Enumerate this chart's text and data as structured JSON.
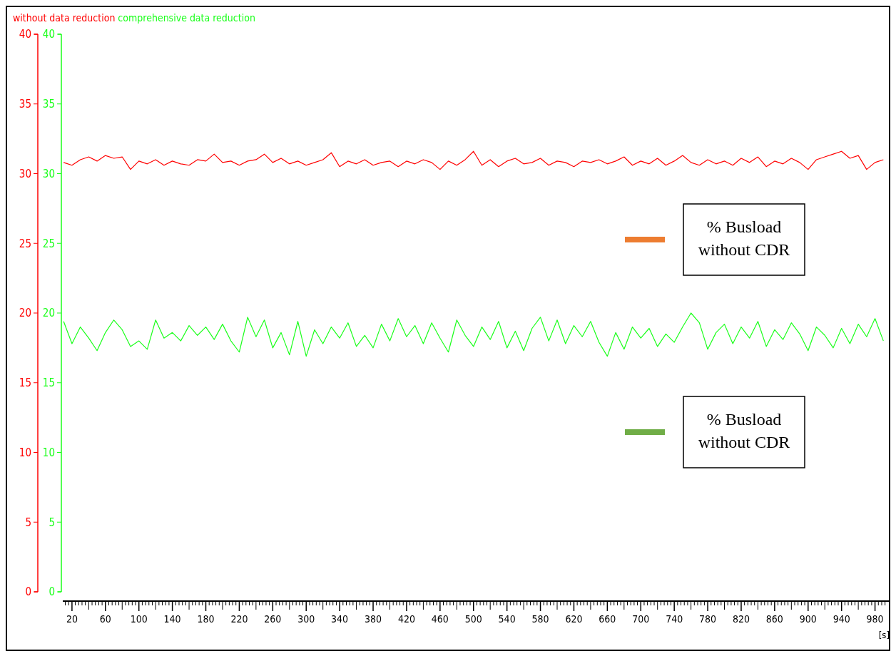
{
  "chart_data": {
    "type": "line",
    "xlabel": "[s]",
    "legend": "top left",
    "x": [
      10,
      20,
      30,
      40,
      50,
      60,
      70,
      80,
      90,
      100,
      110,
      120,
      130,
      140,
      150,
      160,
      170,
      180,
      190,
      200,
      210,
      220,
      230,
      240,
      250,
      260,
      270,
      280,
      290,
      300,
      310,
      320,
      330,
      340,
      350,
      360,
      370,
      380,
      390,
      400,
      410,
      420,
      430,
      440,
      450,
      460,
      470,
      480,
      490,
      500,
      510,
      520,
      530,
      540,
      550,
      560,
      570,
      580,
      590,
      600,
      610,
      620,
      630,
      640,
      650,
      660,
      670,
      680,
      690,
      700,
      710,
      720,
      730,
      740,
      750,
      760,
      770,
      780,
      790,
      800,
      810,
      820,
      830,
      840,
      850,
      860,
      870,
      880,
      890,
      900,
      910,
      920,
      930,
      940,
      950,
      960,
      970,
      980,
      990
    ],
    "xlim": [
      9,
      994
    ],
    "xticks": [
      20,
      60,
      100,
      140,
      180,
      220,
      260,
      300,
      340,
      380,
      420,
      460,
      500,
      540,
      580,
      620,
      660,
      700,
      740,
      780,
      820,
      860,
      900,
      940,
      980
    ],
    "ylim": [
      0,
      40
    ],
    "yticks": [
      0,
      5,
      10,
      15,
      20,
      25,
      30,
      35,
      40
    ],
    "y2lim": [
      0,
      40
    ],
    "y2ticks": [
      0,
      5,
      10,
      15,
      20,
      25,
      30,
      35,
      40
    ],
    "series": [
      {
        "name": "without data reduction",
        "color": "#ff0000",
        "values": [
          30.8,
          30.6,
          31.0,
          31.2,
          30.9,
          31.3,
          31.1,
          31.2,
          30.3,
          30.9,
          30.7,
          31.0,
          30.6,
          30.9,
          30.7,
          30.6,
          31.0,
          30.9,
          31.4,
          30.8,
          30.9,
          30.6,
          30.9,
          31.0,
          31.4,
          30.8,
          31.1,
          30.7,
          30.9,
          30.6,
          30.8,
          31.0,
          31.5,
          30.5,
          30.9,
          30.7,
          31.0,
          30.6,
          30.8,
          30.9,
          30.5,
          30.9,
          30.7,
          31.0,
          30.8,
          30.3,
          30.9,
          30.6,
          31.0,
          31.6,
          30.6,
          31.0,
          30.5,
          30.9,
          31.1,
          30.7,
          30.8,
          31.1,
          30.6,
          30.9,
          30.8,
          30.5,
          30.9,
          30.8,
          31.0,
          30.7,
          30.9,
          31.2,
          30.6,
          30.9,
          30.7,
          31.1,
          30.6,
          30.9,
          31.3,
          30.8,
          30.6,
          31.0,
          30.7,
          30.9,
          30.6,
          31.1,
          30.8,
          31.2,
          30.5,
          30.9,
          30.7,
          31.1,
          30.8,
          30.3,
          31.0,
          31.2,
          31.4,
          31.6,
          31.1,
          31.3,
          30.3,
          30.8,
          31.0
        ]
      },
      {
        "name": "comprehensive data reduction",
        "color": "#1aff1a",
        "axis": "y2",
        "values": [
          19.4,
          17.8,
          19.0,
          18.2,
          17.3,
          18.6,
          19.5,
          18.8,
          17.6,
          18.0,
          17.4,
          19.5,
          18.2,
          18.6,
          18.0,
          19.1,
          18.4,
          19.0,
          18.1,
          19.2,
          18.0,
          17.2,
          19.7,
          18.3,
          19.5,
          17.5,
          18.6,
          17.0,
          19.4,
          16.9,
          18.8,
          17.8,
          19.0,
          18.2,
          19.3,
          17.6,
          18.4,
          17.5,
          19.2,
          18.0,
          19.6,
          18.3,
          19.1,
          17.8,
          19.3,
          18.2,
          17.2,
          19.5,
          18.4,
          17.6,
          19.0,
          18.1,
          19.4,
          17.5,
          18.7,
          17.3,
          18.9,
          19.7,
          18.0,
          19.5,
          17.8,
          19.1,
          18.3,
          19.4,
          17.9,
          16.9,
          18.6,
          17.4,
          19.0,
          18.2,
          18.9,
          17.6,
          18.5,
          17.9,
          19.0,
          20.0,
          19.3,
          17.4,
          18.6,
          19.2,
          17.8,
          19.0,
          18.2,
          19.4,
          17.6,
          18.8,
          18.1,
          19.3,
          18.5,
          17.3,
          19.0,
          18.4,
          17.5,
          18.9,
          17.8,
          19.2,
          18.3,
          19.6,
          18.0
        ]
      }
    ],
    "annotations": [
      "% Busload without CDR",
      "% Busload without CDR"
    ]
  }
}
